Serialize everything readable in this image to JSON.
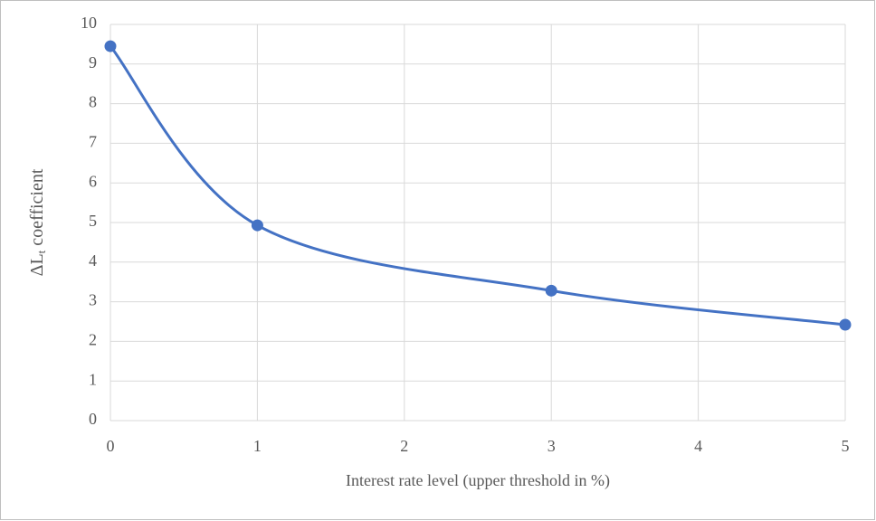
{
  "chart_data": {
    "type": "line",
    "x": [
      0,
      1,
      3,
      5
    ],
    "series": [
      {
        "name": "ΔLt coefficient",
        "color": "#4472c4",
        "values": [
          9.45,
          4.93,
          3.28,
          2.42
        ]
      }
    ],
    "xlim": [
      0,
      5
    ],
    "xticks": [
      0,
      1,
      2,
      3,
      4,
      5
    ],
    "ylim": [
      0,
      10
    ],
    "yticks": [
      0,
      1,
      2,
      3,
      4,
      5,
      6,
      7,
      8,
      9,
      10
    ],
    "x_label": "Interest rate level (upper threshold in %)",
    "y_label_parts": [
      "ΔL",
      "t",
      "coefficient"
    ],
    "grid": true,
    "smooth": true
  }
}
